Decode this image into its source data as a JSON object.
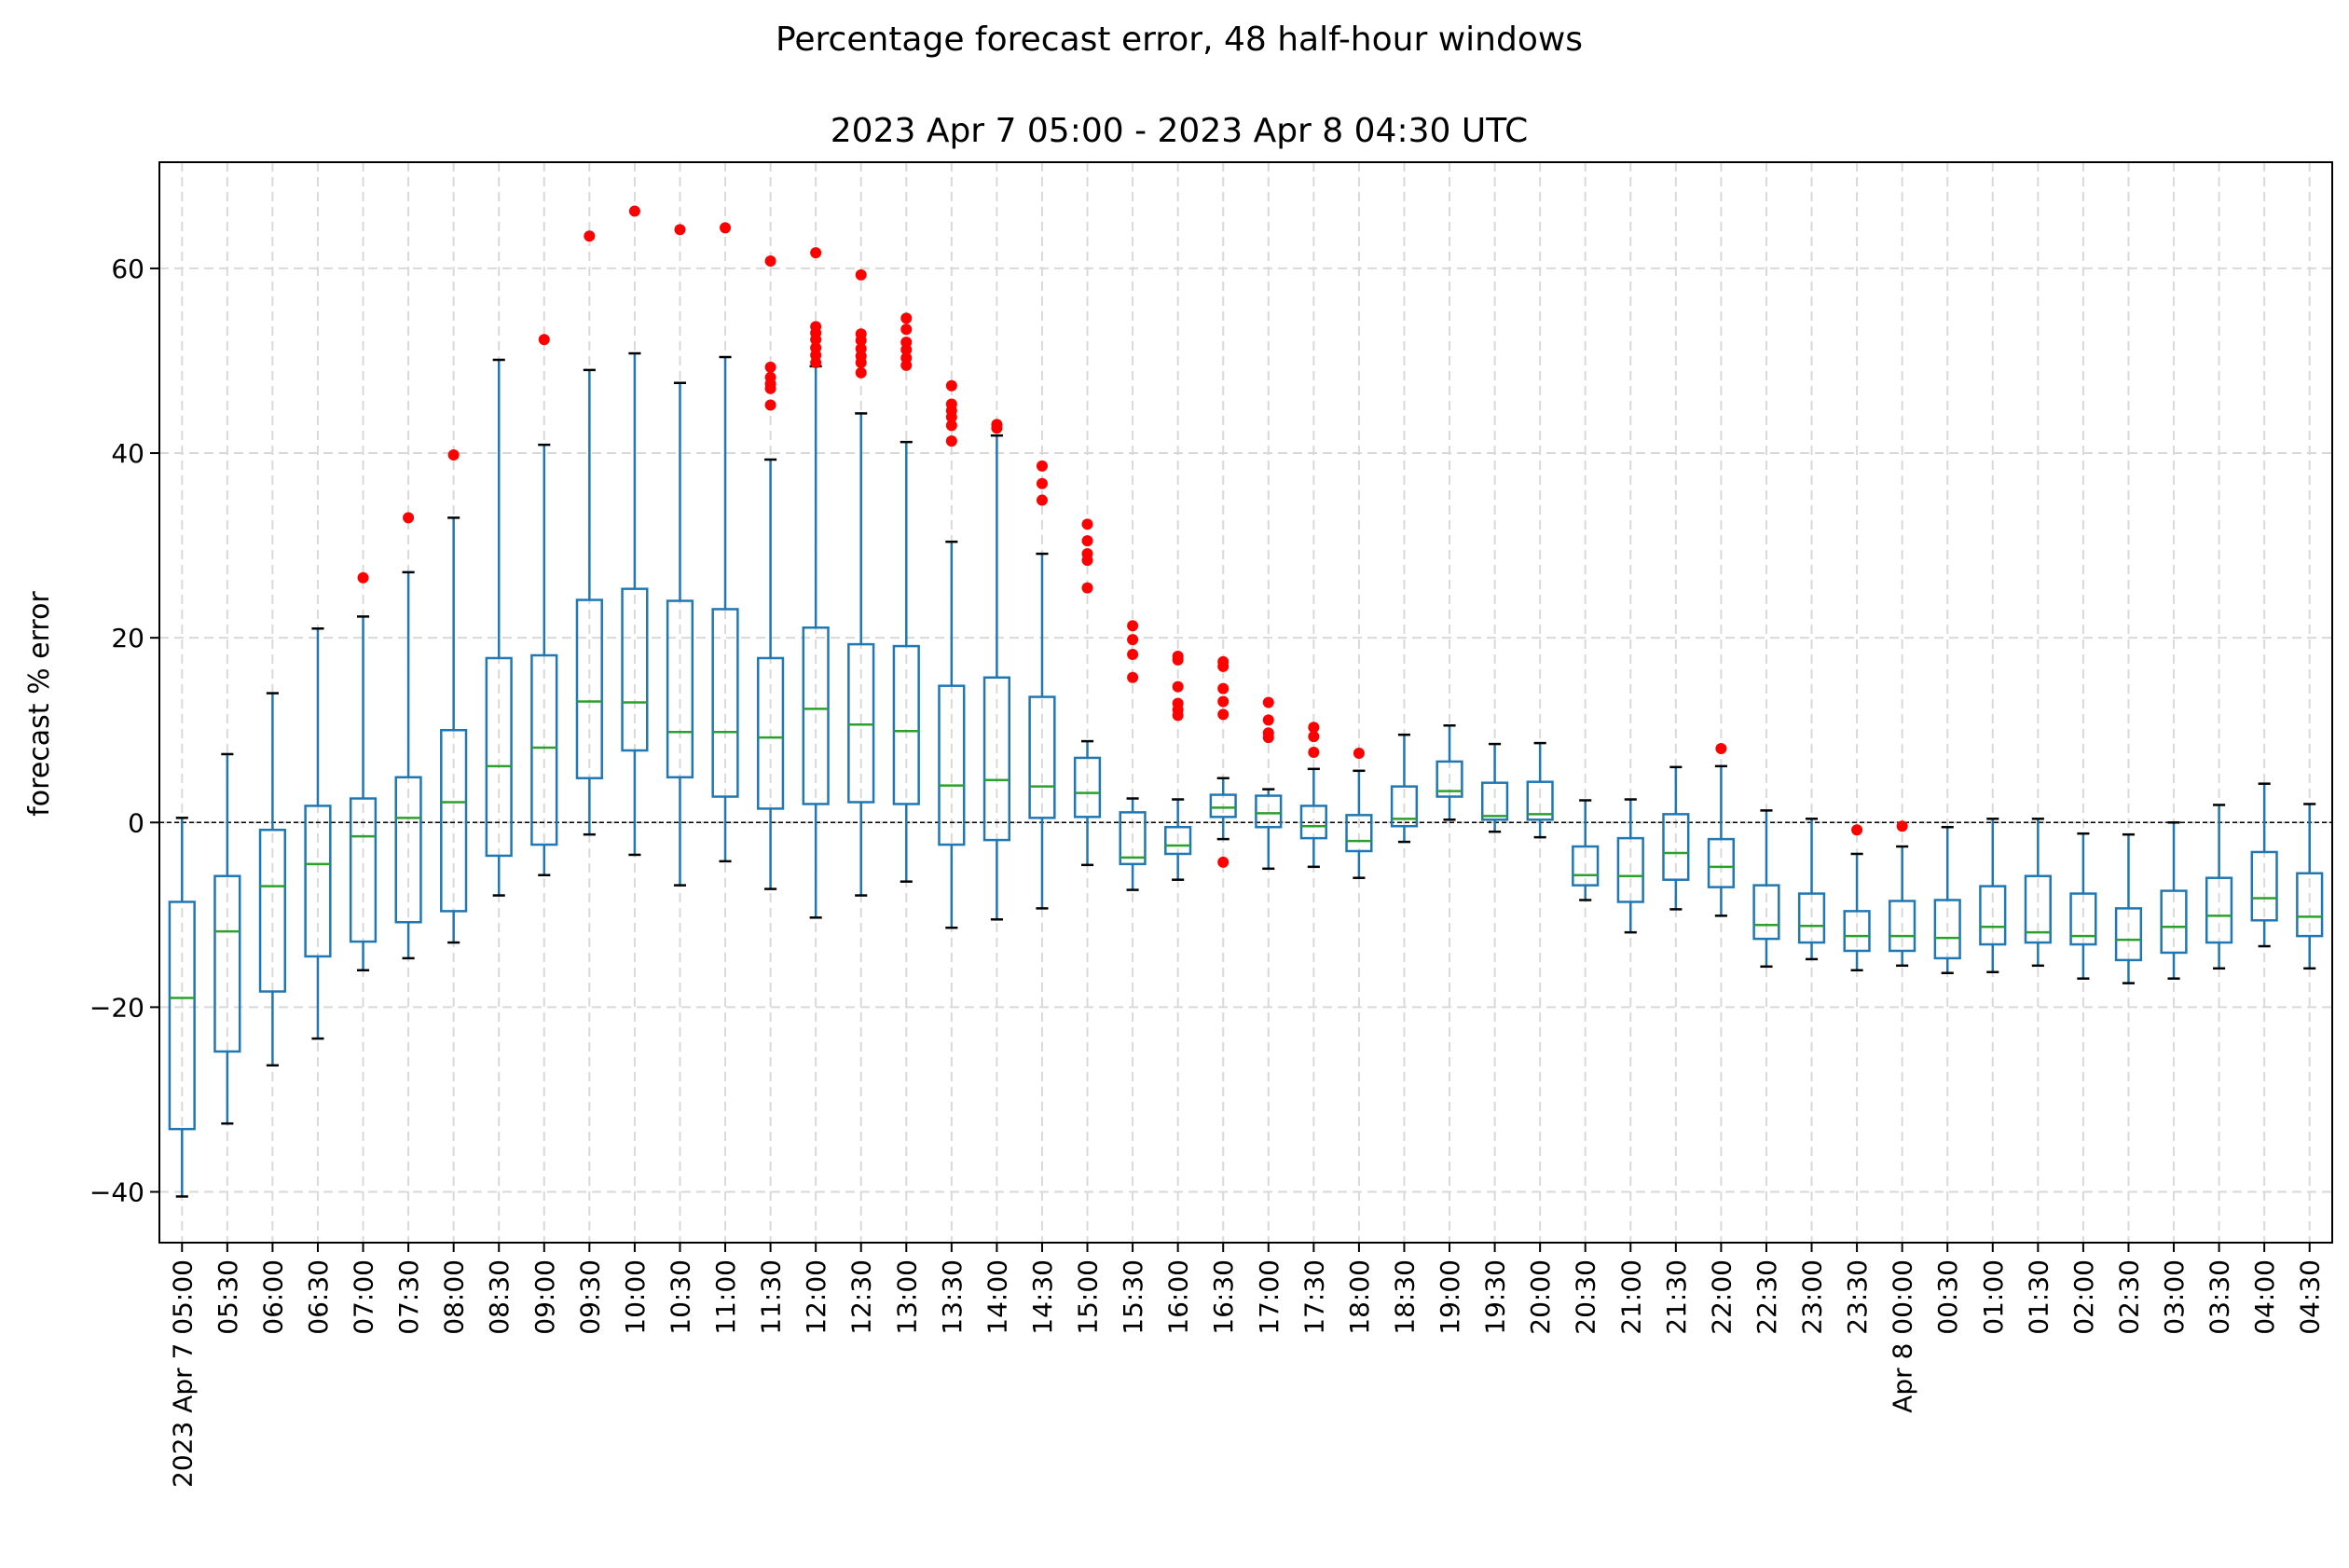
{
  "chart_data": {
    "type": "box",
    "title": "Percentage forecast error, 48 half-hour windows",
    "subtitle": "2023 Apr 7 05:00 - 2023 Apr 8 04:30 UTC",
    "xlabel": "",
    "ylabel": "forecast % error",
    "ylim": [
      -45.5,
      71.5
    ],
    "yticks": [
      -40,
      -20,
      0,
      20,
      40,
      60
    ],
    "grid": true,
    "zero_line": true,
    "colors": {
      "box": "#1f77b4",
      "median": "#2ca02c",
      "outlier": "#ff0000",
      "whisker": "#1f77b4",
      "grid": "#d9d9d9"
    },
    "categories": [
      "2023 Apr 7 05:00",
      "05:30",
      "06:00",
      "06:30",
      "07:00",
      "07:30",
      "08:00",
      "08:30",
      "09:00",
      "09:30",
      "10:00",
      "10:30",
      "11:00",
      "11:30",
      "12:00",
      "12:30",
      "13:00",
      "13:30",
      "14:00",
      "14:30",
      "15:00",
      "15:30",
      "16:00",
      "16:30",
      "17:00",
      "17:30",
      "18:00",
      "18:30",
      "19:00",
      "19:30",
      "20:00",
      "20:30",
      "21:00",
      "21:30",
      "22:00",
      "22:30",
      "23:00",
      "23:30",
      "Apr 8 00:00",
      "00:30",
      "01:00",
      "01:30",
      "02:00",
      "02:30",
      "03:00",
      "03:30",
      "04:00",
      "04:30"
    ],
    "boxes": [
      {
        "low": -40.5,
        "q1": -33.2,
        "median": -19.0,
        "q3": -8.6,
        "high": 0.5,
        "outliers": []
      },
      {
        "low": -32.6,
        "q1": -24.8,
        "median": -11.8,
        "q3": -5.8,
        "high": 7.4,
        "outliers": []
      },
      {
        "low": -26.3,
        "q1": -18.3,
        "median": -6.9,
        "q3": -0.8,
        "high": 14.0,
        "outliers": []
      },
      {
        "low": -23.4,
        "q1": -14.5,
        "median": -4.5,
        "q3": 1.8,
        "high": 21.0,
        "outliers": []
      },
      {
        "low": -16.0,
        "q1": -12.9,
        "median": -1.5,
        "q3": 2.6,
        "high": 22.3,
        "outliers": [
          26.5
        ]
      },
      {
        "low": -14.7,
        "q1": -10.8,
        "median": 0.5,
        "q3": 4.9,
        "high": 27.1,
        "outliers": [
          33.0
        ]
      },
      {
        "low": -13.0,
        "q1": -9.6,
        "median": 2.2,
        "q3": 10.0,
        "high": 33.0,
        "outliers": [
          39.8
        ]
      },
      {
        "low": -7.9,
        "q1": -3.6,
        "median": 6.1,
        "q3": 17.8,
        "high": 50.1,
        "outliers": []
      },
      {
        "low": -5.7,
        "q1": -2.4,
        "median": 8.1,
        "q3": 18.1,
        "high": 40.9,
        "outliers": [
          52.3
        ]
      },
      {
        "low": -1.3,
        "q1": 4.8,
        "median": 13.1,
        "q3": 24.1,
        "high": 49.0,
        "outliers": [
          63.5
        ]
      },
      {
        "low": -3.5,
        "q1": 7.8,
        "median": 13.0,
        "q3": 25.3,
        "high": 50.8,
        "outliers": [
          66.2
        ]
      },
      {
        "low": -6.8,
        "q1": 4.9,
        "median": 9.8,
        "q3": 24.0,
        "high": 47.6,
        "outliers": [
          64.2
        ]
      },
      {
        "low": -4.2,
        "q1": 2.8,
        "median": 9.8,
        "q3": 23.1,
        "high": 50.4,
        "outliers": [
          64.4
        ]
      },
      {
        "low": -7.2,
        "q1": 1.5,
        "median": 9.2,
        "q3": 17.8,
        "high": 39.3,
        "outliers": [
          60.8,
          49.3,
          48.2,
          47.5,
          47.0,
          45.2
        ]
      },
      {
        "low": -10.3,
        "q1": 2.0,
        "median": 12.3,
        "q3": 21.1,
        "high": 49.4,
        "outliers": [
          61.7,
          53.7,
          53.0,
          52.3,
          51.4,
          50.6,
          49.8
        ]
      },
      {
        "low": -7.9,
        "q1": 2.2,
        "median": 10.6,
        "q3": 19.3,
        "high": 44.3,
        "outliers": [
          59.3,
          52.9,
          52.2,
          51.3,
          50.5,
          49.8,
          48.7
        ]
      },
      {
        "low": -6.4,
        "q1": 2.0,
        "median": 9.9,
        "q3": 19.1,
        "high": 41.2,
        "outliers": [
          54.6,
          53.4,
          52.0,
          51.2,
          50.3,
          49.5
        ]
      },
      {
        "low": -11.4,
        "q1": -2.4,
        "median": 4.0,
        "q3": 14.8,
        "high": 30.4,
        "outliers": [
          47.3,
          45.3,
          44.6,
          43.9,
          43.0,
          41.3
        ]
      },
      {
        "low": -10.5,
        "q1": -1.9,
        "median": 4.6,
        "q3": 15.7,
        "high": 41.9,
        "outliers": [
          43.1,
          42.7
        ]
      },
      {
        "low": -9.3,
        "q1": 0.5,
        "median": 3.9,
        "q3": 13.6,
        "high": 29.1,
        "outliers": [
          38.6,
          36.7,
          34.9
        ]
      },
      {
        "low": -4.6,
        "q1": 0.6,
        "median": 3.2,
        "q3": 7.0,
        "high": 8.8,
        "outliers": [
          32.3,
          30.5,
          29.1,
          28.4,
          25.4
        ]
      },
      {
        "low": -7.3,
        "q1": -4.5,
        "median": -3.8,
        "q3": 1.1,
        "high": 2.6,
        "outliers": [
          21.3,
          19.8,
          18.2,
          15.7
        ]
      },
      {
        "low": -6.2,
        "q1": -3.4,
        "median": -2.5,
        "q3": -0.5,
        "high": 2.5,
        "outliers": [
          18.0,
          17.6,
          14.7,
          12.9,
          12.2,
          11.6
        ]
      },
      {
        "low": -1.8,
        "q1": 0.6,
        "median": 1.6,
        "q3": 3.0,
        "high": 4.8,
        "outliers": [
          17.4,
          16.9,
          14.5,
          13.1,
          11.7,
          -4.3
        ]
      },
      {
        "low": -5.0,
        "q1": -0.5,
        "median": 1.0,
        "q3": 2.9,
        "high": 3.6,
        "outliers": [
          13.0,
          11.1,
          9.7,
          9.2
        ]
      },
      {
        "low": -4.8,
        "q1": -1.7,
        "median": -0.4,
        "q3": 1.8,
        "high": 5.8,
        "outliers": [
          10.3,
          9.3,
          7.6
        ]
      },
      {
        "low": -6.0,
        "q1": -3.1,
        "median": -2.0,
        "q3": 0.8,
        "high": 5.6,
        "outliers": [
          7.5
        ]
      },
      {
        "low": -2.1,
        "q1": -0.4,
        "median": 0.4,
        "q3": 3.9,
        "high": 9.5,
        "outliers": []
      },
      {
        "low": 0.3,
        "q1": 2.8,
        "median": 3.4,
        "q3": 6.6,
        "high": 10.5,
        "outliers": []
      },
      {
        "low": -1.0,
        "q1": 0.3,
        "median": 0.7,
        "q3": 4.3,
        "high": 8.5,
        "outliers": []
      },
      {
        "low": -1.6,
        "q1": 0.3,
        "median": 0.9,
        "q3": 4.4,
        "high": 8.6,
        "outliers": []
      },
      {
        "low": -8.4,
        "q1": -6.8,
        "median": -5.7,
        "q3": -2.6,
        "high": 2.4,
        "outliers": []
      },
      {
        "low": -11.9,
        "q1": -8.6,
        "median": -5.8,
        "q3": -1.7,
        "high": 2.5,
        "outliers": []
      },
      {
        "low": -9.4,
        "q1": -6.2,
        "median": -3.3,
        "q3": 0.9,
        "high": 6.0,
        "outliers": []
      },
      {
        "low": -10.1,
        "q1": -7.0,
        "median": -4.8,
        "q3": -1.8,
        "high": 6.1,
        "outliers": [
          8.0
        ]
      },
      {
        "low": -15.6,
        "q1": -12.6,
        "median": -11.1,
        "q3": -6.8,
        "high": 1.3,
        "outliers": []
      },
      {
        "low": -14.8,
        "q1": -13.0,
        "median": -11.2,
        "q3": -7.7,
        "high": 0.4,
        "outliers": []
      },
      {
        "low": -16.0,
        "q1": -13.9,
        "median": -12.3,
        "q3": -9.6,
        "high": -3.4,
        "outliers": [
          -0.8
        ]
      },
      {
        "low": -15.5,
        "q1": -13.9,
        "median": -12.3,
        "q3": -8.5,
        "high": -2.6,
        "outliers": [
          -0.4
        ]
      },
      {
        "low": -16.3,
        "q1": -14.7,
        "median": -12.5,
        "q3": -8.4,
        "high": -0.5,
        "outliers": []
      },
      {
        "low": -16.2,
        "q1": -13.2,
        "median": -11.3,
        "q3": -6.9,
        "high": 0.4,
        "outliers": []
      },
      {
        "low": -15.5,
        "q1": -13.0,
        "median": -11.9,
        "q3": -5.8,
        "high": 0.4,
        "outliers": []
      },
      {
        "low": -16.9,
        "q1": -13.2,
        "median": -12.3,
        "q3": -7.7,
        "high": -1.2,
        "outliers": []
      },
      {
        "low": -17.4,
        "q1": -14.9,
        "median": -12.7,
        "q3": -9.3,
        "high": -1.3,
        "outliers": []
      },
      {
        "low": -16.9,
        "q1": -14.1,
        "median": -11.3,
        "q3": -7.4,
        "high": 0.0,
        "outliers": []
      },
      {
        "low": -15.8,
        "q1": -13.0,
        "median": -10.1,
        "q3": -6.0,
        "high": 1.9,
        "outliers": []
      },
      {
        "low": -13.4,
        "q1": -10.6,
        "median": -8.2,
        "q3": -3.2,
        "high": 4.2,
        "outliers": []
      },
      {
        "low": -15.8,
        "q1": -12.3,
        "median": -10.2,
        "q3": -5.5,
        "high": 2.0,
        "outliers": []
      }
    ]
  }
}
